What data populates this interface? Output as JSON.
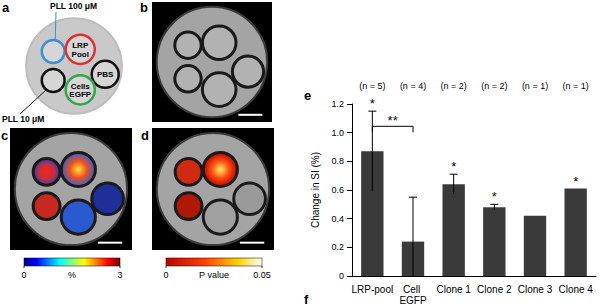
{
  "panels": {
    "a": {
      "label": "a",
      "wells": [
        {
          "label": "PLL 100 μM",
          "color": "#3a8fd6"
        },
        {
          "label": "LRP Pool",
          "color": "#e0302c"
        },
        {
          "label": "PBS",
          "color": "#111111"
        },
        {
          "label": "Cells EGFP",
          "color": "#2fa84b"
        },
        {
          "label": "PLL 10 μM",
          "color": "#111111"
        }
      ]
    },
    "b": {
      "label": "b"
    },
    "c": {
      "label": "c",
      "colorbar": {
        "range": [
          0,
          3
        ],
        "ticks": [
          0,
          3
        ],
        "label": "%"
      }
    },
    "d": {
      "label": "d",
      "colorbar": {
        "range": [
          0,
          0.05
        ],
        "ticks": [
          0,
          0.05
        ],
        "label": "P value"
      }
    },
    "e": {
      "label": "e"
    },
    "f": {
      "label": "f"
    }
  },
  "chart_data": {
    "type": "bar",
    "categories": [
      "LRP-pool",
      "Cell EGFP",
      "Clone 1",
      "Clone 2",
      "Clone 3",
      "Clone 4"
    ],
    "values": [
      0.87,
      0.24,
      0.64,
      0.48,
      0.42,
      0.61
    ],
    "errors": [
      0.28,
      0.31,
      0.07,
      0.02,
      null,
      null
    ],
    "n_labels": [
      "(n = 5)",
      "(n = 4)",
      "(n = 2)",
      "(n = 2)",
      "(n = 1)",
      "(n = 1)"
    ],
    "stars": [
      "*",
      null,
      "*",
      "*",
      null,
      "*"
    ],
    "significance": [
      {
        "from": 0,
        "to": 1,
        "label": "**"
      }
    ],
    "color": "#3a3a3a",
    "ylabel": "Change in SI (%)",
    "ylim": [
      0,
      1.2
    ],
    "yticks": [
      0,
      0.2,
      0.4,
      0.6,
      0.8,
      {
        "value": 1,
        "label": "1.0"
      },
      1.2
    ],
    "grid": false
  }
}
